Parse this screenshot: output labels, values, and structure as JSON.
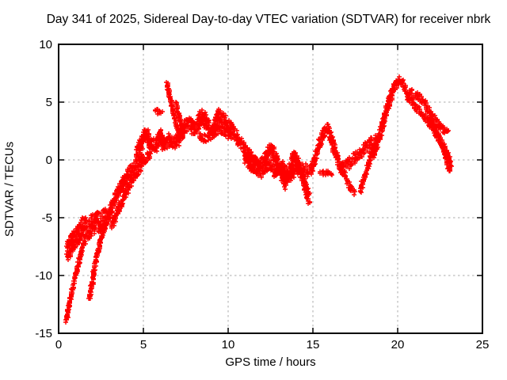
{
  "chart_data": {
    "type": "scatter",
    "title": "Day 341 of 2025, Sidereal Day-to-day VTEC variation (SDTVAR) for receiver nbrk",
    "xlabel": "GPS time / hours",
    "ylabel": "SDTVAR / TECUs",
    "xlim": [
      0,
      25
    ],
    "ylim": [
      -15,
      10
    ],
    "x_ticks": [
      0,
      5,
      10,
      15,
      20,
      25
    ],
    "y_ticks": [
      -15,
      -10,
      -5,
      0,
      5,
      10
    ],
    "grid": true,
    "legend_position": "none",
    "marker": "plus",
    "marker_color": "#ff0000",
    "grid_color": "#ababab",
    "axis_color": "#000000",
    "background": "#ffffff",
    "series": [
      {
        "name": "tail-a",
        "w": 0.18,
        "points": [
          [
            0.45,
            -13.9
          ],
          [
            0.6,
            -12.8
          ],
          [
            0.78,
            -11.5
          ],
          [
            0.98,
            -10.1
          ],
          [
            1.18,
            -8.9
          ],
          [
            1.38,
            -7.8
          ],
          [
            1.58,
            -7.0
          ]
        ]
      },
      {
        "name": "tail-b",
        "w": 0.18,
        "points": [
          [
            1.82,
            -12.1
          ],
          [
            1.96,
            -10.8
          ],
          [
            2.1,
            -9.6
          ],
          [
            2.26,
            -8.3
          ],
          [
            2.46,
            -7.0
          ],
          [
            2.66,
            -6.0
          ],
          [
            2.86,
            -5.3
          ]
        ]
      },
      {
        "name": "cluster-early",
        "w": 0.9,
        "points": [
          [
            0.5,
            -7.9
          ],
          [
            0.75,
            -7.3
          ],
          [
            1.0,
            -6.8
          ],
          [
            1.25,
            -6.2
          ],
          [
            1.5,
            -5.8
          ],
          [
            1.75,
            -6.0
          ],
          [
            2.0,
            -5.6
          ],
          [
            2.3,
            -5.4
          ],
          [
            2.6,
            -5.2
          ],
          [
            2.9,
            -5.0
          ]
        ]
      },
      {
        "name": "rise-a",
        "w": 0.45,
        "points": [
          [
            2.9,
            -5.0
          ],
          [
            3.2,
            -3.9
          ],
          [
            3.5,
            -2.8
          ],
          [
            3.8,
            -1.9
          ],
          [
            4.1,
            -1.1
          ],
          [
            4.4,
            -0.6
          ],
          [
            4.7,
            -0.2
          ],
          [
            5.0,
            0.3
          ]
        ]
      },
      {
        "name": "rise-b",
        "w": 0.35,
        "points": [
          [
            3.15,
            -5.7
          ],
          [
            3.5,
            -4.4
          ],
          [
            3.85,
            -3.2
          ],
          [
            4.2,
            -2.1
          ],
          [
            4.55,
            -1.2
          ],
          [
            4.85,
            -0.5
          ],
          [
            5.15,
            0.1
          ],
          [
            5.45,
            0.6
          ]
        ]
      },
      {
        "name": "band-morning",
        "w": 0.55,
        "points": [
          [
            4.6,
            0.6
          ],
          [
            4.9,
            1.5
          ],
          [
            5.15,
            2.3
          ],
          [
            5.45,
            1.4
          ],
          [
            5.75,
            1.3
          ],
          [
            6.0,
            2.1
          ],
          [
            6.2,
            1.3
          ],
          [
            6.5,
            1.7
          ],
          [
            6.8,
            1.4
          ],
          [
            7.1,
            1.9
          ],
          [
            7.45,
            2.9
          ],
          [
            7.7,
            3.2
          ],
          [
            7.95,
            2.6
          ],
          [
            8.2,
            3.0
          ]
        ]
      },
      {
        "name": "spike",
        "w": 0.15,
        "points": [
          [
            6.4,
            6.6
          ],
          [
            6.5,
            5.9
          ],
          [
            6.62,
            5.1
          ],
          [
            6.75,
            4.2
          ],
          [
            6.9,
            3.3
          ],
          [
            7.05,
            2.5
          ],
          [
            7.15,
            2.1
          ]
        ]
      },
      {
        "name": "spike-b",
        "w": 0.15,
        "points": [
          [
            6.95,
            4.9
          ],
          [
            7.05,
            4.1
          ],
          [
            7.18,
            3.3
          ],
          [
            7.3,
            2.6
          ]
        ]
      },
      {
        "name": "blob-high",
        "w": 0.28,
        "points": [
          [
            5.7,
            4.05
          ],
          [
            5.85,
            4.3
          ],
          [
            6.0,
            4.2
          ],
          [
            6.12,
            3.95
          ]
        ]
      },
      {
        "name": "band-midday-high",
        "w": 0.6,
        "points": [
          [
            8.2,
            3.0
          ],
          [
            8.45,
            3.9
          ],
          [
            8.75,
            3.1
          ],
          [
            9.1,
            2.6
          ],
          [
            9.45,
            3.8
          ],
          [
            9.75,
            3.4
          ],
          [
            10.05,
            2.9
          ],
          [
            10.3,
            2.4
          ]
        ]
      },
      {
        "name": "band-midday-low",
        "w": 0.4,
        "points": [
          [
            8.3,
            2.1
          ],
          [
            8.7,
            1.9
          ],
          [
            9.1,
            2.2
          ],
          [
            9.5,
            2.7
          ],
          [
            9.9,
            2.3
          ],
          [
            10.25,
            1.9
          ]
        ]
      },
      {
        "name": "decline-noon",
        "w": 0.5,
        "points": [
          [
            10.3,
            2.4
          ],
          [
            10.6,
            1.7
          ],
          [
            10.9,
            1.1
          ],
          [
            11.2,
            0.5
          ],
          [
            11.5,
            -0.1
          ],
          [
            11.8,
            -0.6
          ]
        ]
      },
      {
        "name": "band-noon-a",
        "w": 0.5,
        "points": [
          [
            11.0,
            0.8
          ],
          [
            11.4,
            0.1
          ],
          [
            11.8,
            -0.6
          ],
          [
            12.1,
            -0.2
          ],
          [
            12.5,
            1.1
          ],
          [
            12.8,
            0.2
          ],
          [
            13.1,
            -1.0
          ],
          [
            13.35,
            -2.1
          ],
          [
            13.6,
            -1.0
          ],
          [
            13.9,
            0.4
          ],
          [
            14.15,
            -0.4
          ],
          [
            14.4,
            -1.5
          ],
          [
            14.65,
            -2.8
          ],
          [
            14.8,
            -3.4
          ]
        ]
      },
      {
        "name": "band-noon-b",
        "w": 0.45,
        "points": [
          [
            11.0,
            0.1
          ],
          [
            11.5,
            -0.8
          ],
          [
            12.0,
            -1.1
          ],
          [
            12.4,
            -0.4
          ],
          [
            12.8,
            -1.2
          ],
          [
            13.2,
            -0.5
          ],
          [
            13.6,
            -1.5
          ],
          [
            14.0,
            -0.9
          ],
          [
            14.4,
            -0.6
          ],
          [
            14.8,
            -1.1
          ]
        ]
      },
      {
        "name": "rise-afternoon",
        "w": 0.4,
        "points": [
          [
            14.85,
            -1.0
          ],
          [
            15.05,
            -0.2
          ],
          [
            15.25,
            0.7
          ],
          [
            15.45,
            1.6
          ],
          [
            15.65,
            2.3
          ],
          [
            15.85,
            2.9
          ],
          [
            16.0,
            2.3
          ],
          [
            16.2,
            1.2
          ],
          [
            16.4,
            0.3
          ],
          [
            16.6,
            -0.4
          ]
        ]
      },
      {
        "name": "blob-low",
        "w": 0.25,
        "points": [
          [
            15.45,
            -1.0
          ],
          [
            15.7,
            -1.25
          ],
          [
            15.95,
            -1.15
          ],
          [
            16.15,
            -1.3
          ]
        ]
      },
      {
        "name": "dip-evening",
        "w": 0.25,
        "points": [
          [
            16.6,
            -0.4
          ],
          [
            16.8,
            -1.1
          ],
          [
            17.0,
            -1.8
          ],
          [
            17.25,
            -2.5
          ],
          [
            17.5,
            -2.9
          ]
        ]
      },
      {
        "name": "rise-evening-a",
        "w": 0.45,
        "points": [
          [
            16.6,
            -0.9
          ],
          [
            17.0,
            -0.4
          ],
          [
            17.4,
            0.1
          ],
          [
            17.8,
            0.6
          ],
          [
            18.2,
            1.2
          ],
          [
            18.55,
            1.7
          ]
        ]
      },
      {
        "name": "rise-evening-b",
        "w": 0.28,
        "points": [
          [
            17.8,
            -2.7
          ],
          [
            18.05,
            -1.5
          ],
          [
            18.3,
            -0.3
          ],
          [
            18.55,
            1.0
          ],
          [
            18.8,
            2.1
          ]
        ]
      },
      {
        "name": "peak-ascent",
        "w": 0.42,
        "points": [
          [
            18.55,
            0.5
          ],
          [
            18.8,
            1.5
          ],
          [
            19.05,
            2.7
          ],
          [
            19.3,
            4.0
          ],
          [
            19.55,
            5.3
          ],
          [
            19.75,
            6.1
          ],
          [
            19.95,
            6.7
          ]
        ]
      },
      {
        "name": "peak-top",
        "w": 0.3,
        "points": [
          [
            19.95,
            6.7
          ],
          [
            20.15,
            6.9
          ],
          [
            20.35,
            6.4
          ],
          [
            20.55,
            5.8
          ]
        ]
      },
      {
        "name": "peak-shoulder",
        "w": 0.35,
        "points": [
          [
            20.6,
            5.9
          ],
          [
            20.9,
            5.7
          ],
          [
            21.2,
            5.5
          ],
          [
            21.5,
            5.1
          ]
        ]
      },
      {
        "name": "descent-a",
        "w": 0.3,
        "points": [
          [
            21.5,
            5.1
          ],
          [
            21.8,
            4.4
          ],
          [
            22.1,
            3.7
          ],
          [
            22.4,
            3.1
          ],
          [
            22.7,
            2.6
          ],
          [
            23.0,
            2.2
          ]
        ]
      },
      {
        "name": "descent-b",
        "w": 0.3,
        "points": [
          [
            20.6,
            5.5
          ],
          [
            20.95,
            4.8
          ],
          [
            21.3,
            4.2
          ],
          [
            21.65,
            3.6
          ],
          [
            22.0,
            2.9
          ],
          [
            22.35,
            2.1
          ],
          [
            22.7,
            1.2
          ],
          [
            23.0,
            0.2
          ],
          [
            23.15,
            -0.6
          ]
        ]
      },
      {
        "name": "descent-c",
        "w": 0.22,
        "points": [
          [
            21.9,
            3.8
          ],
          [
            22.2,
            2.8
          ],
          [
            22.5,
            1.8
          ],
          [
            22.75,
            0.7
          ],
          [
            22.95,
            -0.4
          ],
          [
            23.1,
            -1.1
          ]
        ]
      }
    ]
  }
}
